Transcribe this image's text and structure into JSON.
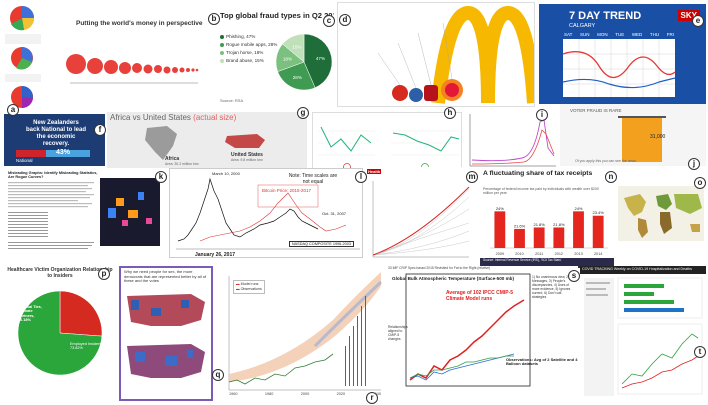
{
  "badges": [
    "a",
    "b",
    "c",
    "d",
    "e",
    "f",
    "g",
    "h",
    "i",
    "j",
    "k",
    "l",
    "m",
    "n",
    "o",
    "p",
    "q",
    "r",
    "s",
    "t"
  ],
  "panel_b": {
    "title": "Putting the world's money in perspective"
  },
  "panel_c": {
    "title": "Top global fraud types in Q2 2018",
    "legend": [
      "Phishing, 47%",
      "Rogue mobile apps, 28%",
      "Trojan horse, 18%",
      "Brand abuse, 15%"
    ],
    "source": "Source: RSA",
    "colors": [
      "#1f6e3a",
      "#3f9a52",
      "#7cc07f",
      "#bfe0b8"
    ],
    "chart_data": {
      "type": "pie",
      "categories": [
        "Phishing",
        "Rogue mobile apps",
        "Trojan horse",
        "Brand abuse"
      ],
      "values": [
        47,
        28,
        18,
        15
      ],
      "slice_labels": [
        "47%",
        "28%",
        "18%",
        "15%"
      ]
    }
  },
  "panel_e": {
    "title": "7 DAY TREND",
    "subtitle": "CALGARY",
    "logo": "SKY",
    "days": [
      "SAT",
      "SUN",
      "MON",
      "TUE",
      "WED",
      "THU",
      "FRI"
    ]
  },
  "panel_f": {
    "headline": "New Zealanders back National to lead the economic recovery.",
    "value": "43%",
    "party": "National"
  },
  "panel_g": {
    "title_prefix": "Africa vs United States",
    "title_accent": "(actual size)",
    "label_africa": "Africa",
    "area_africa": "Area: 30.2 million km²",
    "label_us": "United States",
    "area_us": "Area: 9.8 million km²"
  },
  "panel_j": {
    "title": "VOTER FRAUD IS RARE",
    "value": "31,000",
    "caption": "Of you apply this you can see the news."
  },
  "panel_txt": {
    "title": "Misleading Graphs: Identify Misleading Statistics, Are Rogue Curves?"
  },
  "panel_l": {
    "note": "Note: Time scales are not equal",
    "red_label": "Bitcoin Price: 2015-2017",
    "date_top": "March 10, 2000",
    "date_right": "Oct. 31, 2007",
    "nasdaq_label": "NASDAQ COMPOSITE 1996-2003",
    "date_bottom": "January 26, 2017"
  },
  "panel_m": {
    "header": "Health"
  },
  "panel_n": {
    "title": "A fluctuating share of tax receipts",
    "subtitle": "Percentage of federal income tax paid by individuals with wealth over $200 million per year",
    "footer": "Source: Internal Revenue Service (IRS), 'SOI Tax Stats'",
    "chart_data": {
      "type": "bar",
      "categories": [
        "2009",
        "2010",
        "2011",
        "2012",
        "2013",
        "2014"
      ],
      "values": [
        24.0,
        21.6,
        21.8,
        21.8,
        24.0,
        23.4
      ],
      "value_labels": [
        "24%",
        "21.6%",
        "21.8%",
        "21.8%",
        "24%",
        "23.4%"
      ],
      "ylim": [
        19,
        25
      ]
    }
  },
  "panel_p": {
    "title": "Healthcare Victim Organization Relationship to Insiders",
    "slice_small": "Familial Ties, Intimate Partners, 26.18%",
    "slice_big": "Employed Insiders, 73.82%",
    "colors": [
      "#d42a20",
      "#2aa63a"
    ],
    "chart_data": {
      "type": "pie",
      "categories": [
        "Familial Ties, Intimate Partners",
        "Employed Insiders"
      ],
      "values": [
        26.18,
        73.82
      ]
    }
  },
  "panel_q": {
    "caption": "Why we need people for sex, the more democrats that are represented better by all of these and the votes"
  },
  "panel_r": {
    "legend": [
      "Model runs",
      "Observations"
    ],
    "x_ticks": [
      "1960",
      "1980",
      "2000",
      "2020",
      "2040"
    ]
  },
  "panel_s": {
    "header": "33 IMF CRIP Spec-based 2015 Revisited for Fat to the Right (relative)",
    "title": "Global Bulk Atmospheric Temperature (Surface-500 mb)",
    "note": "Average of 102 IPCC CMIP-5 Climate Model runs",
    "observations": "Observations: Avg of 2 Satellite and 4 Balloon datasets",
    "side_text": "1) No unanimous view, 2) Messages, 3) People's discrepancies, 4) Uses of more evidence, 5) Ignores current, 6) Don't call strategies",
    "left_text": "Relationships aligned to CMIP-5 changes"
  },
  "panel_t": {
    "header": "COVID TRACKING Weekly on COVID-19 Hospitalization and Deaths"
  }
}
